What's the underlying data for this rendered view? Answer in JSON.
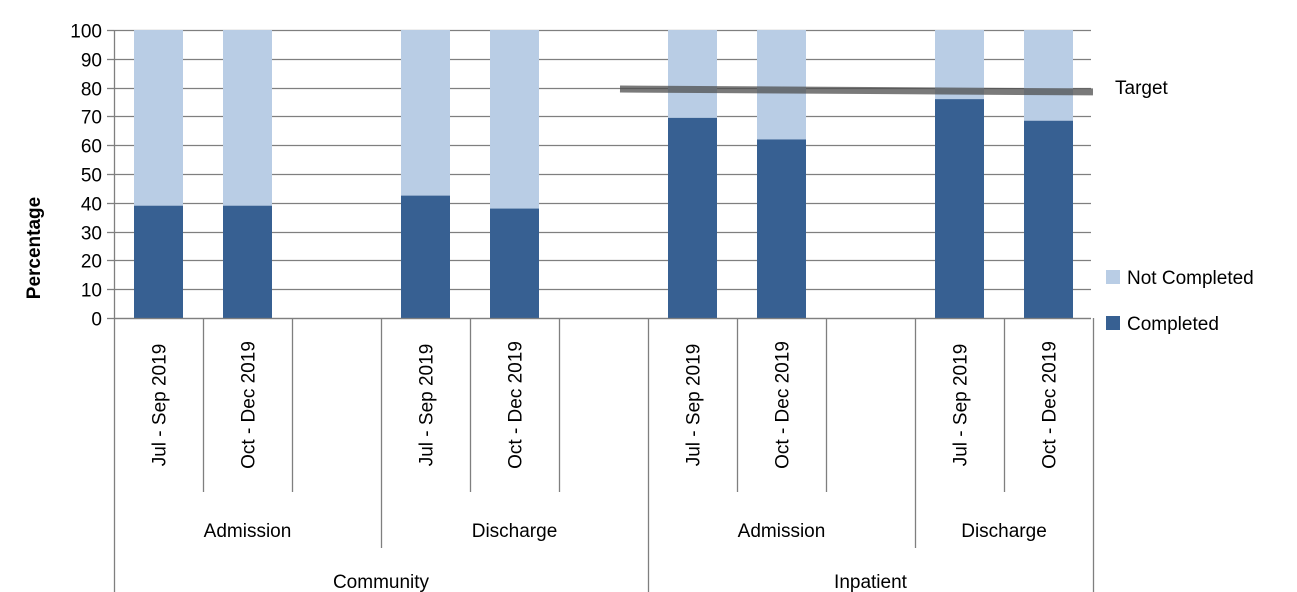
{
  "chart_data": {
    "type": "bar",
    "stacked": true,
    "ylabel": "Percentage",
    "ylim": [
      0,
      100
    ],
    "ytick_step": 10,
    "grid": true,
    "legend_placement": "right",
    "slots": [
      {
        "group": "Community",
        "subgroup": "Admission",
        "period": "Jul - Sep 2019",
        "completed": 39,
        "not_completed": 61
      },
      {
        "group": "Community",
        "subgroup": "Admission",
        "period": "Oct - Dec 2019",
        "completed": 39,
        "not_completed": 61
      },
      {
        "group": "Community",
        "subgroup": "Admission",
        "period": "",
        "completed": null,
        "not_completed": null
      },
      {
        "group": "Community",
        "subgroup": "Discharge",
        "period": "Jul - Sep 2019",
        "completed": 42.5,
        "not_completed": 57.5
      },
      {
        "group": "Community",
        "subgroup": "Discharge",
        "period": "Oct - Dec 2019",
        "completed": 38,
        "not_completed": 62
      },
      {
        "group": "Community",
        "subgroup": "Discharge",
        "period": "",
        "completed": null,
        "not_completed": null
      },
      {
        "group": "Inpatient",
        "subgroup": "Admission",
        "period": "Jul - Sep 2019",
        "completed": 69.5,
        "not_completed": 30.5
      },
      {
        "group": "Inpatient",
        "subgroup": "Admission",
        "period": "Oct - Dec 2019",
        "completed": 62,
        "not_completed": 38
      },
      {
        "group": "Inpatient",
        "subgroup": "Admission",
        "period": "",
        "completed": null,
        "not_completed": null
      },
      {
        "group": "Inpatient",
        "subgroup": "Discharge",
        "period": "Jul - Sep 2019",
        "completed": 76,
        "not_completed": 24
      },
      {
        "group": "Inpatient",
        "subgroup": "Discharge",
        "period": "Oct - Dec 2019",
        "completed": 68.5,
        "not_completed": 31.5
      }
    ],
    "subgroups": [
      {
        "label": "Admission",
        "group": "Community",
        "start": 0,
        "end": 3
      },
      {
        "label": "Discharge",
        "group": "Community",
        "start": 3,
        "end": 6
      },
      {
        "label": "Admission",
        "group": "Inpatient",
        "start": 6,
        "end": 9
      },
      {
        "label": "Discharge",
        "group": "Inpatient",
        "start": 9,
        "end": 11
      }
    ],
    "groups": [
      {
        "label": "Community",
        "start": 0,
        "end": 6
      },
      {
        "label": "Inpatient",
        "start": 6,
        "end": 11
      }
    ],
    "target": {
      "label": "Target",
      "start_value": 79.5,
      "end_value": 78.5,
      "start_slot": 6,
      "end_slot": 11
    },
    "series": [
      {
        "name": "Not Completed",
        "color": "#b9cde5"
      },
      {
        "name": "Completed",
        "color": "#376092"
      }
    ],
    "colors": {
      "target_line": "#4d4d4d",
      "grid": "#7f7f7f",
      "axis": "#7f7f7f"
    }
  }
}
